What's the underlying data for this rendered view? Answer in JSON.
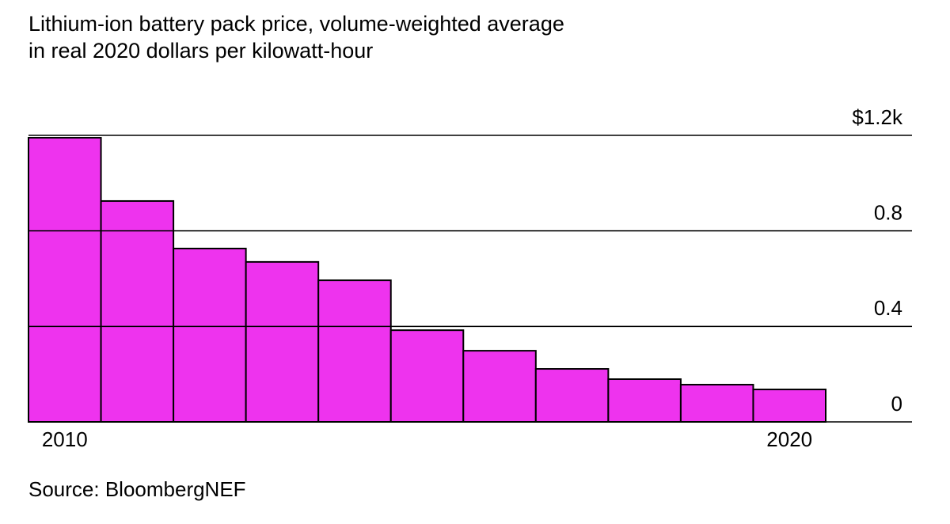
{
  "chart_data": {
    "type": "bar",
    "title": "Lithium-ion battery pack price, volume-weighted average",
    "subtitle": "in real 2020 dollars per kilowatt-hour",
    "source": "Source: BloombergNEF",
    "categories": [
      "2010",
      null,
      null,
      null,
      null,
      null,
      null,
      null,
      null,
      null,
      "2020"
    ],
    "values": [
      1.19,
      0.925,
      0.726,
      0.67,
      0.593,
      0.384,
      0.298,
      0.222,
      0.179,
      0.156,
      0.136
    ],
    "color": "#ee33ee",
    "ylim": [
      0,
      1.2
    ],
    "yticks": [
      0,
      0.4,
      0.8,
      {
        "value": 1.2,
        "label": "$1.2k"
      }
    ],
    "grid": true
  }
}
